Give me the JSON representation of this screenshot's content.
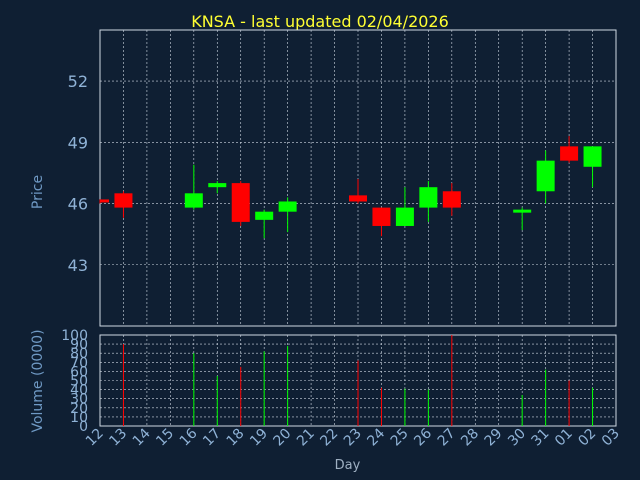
{
  "chart_data": [
    {
      "type": "candlestick",
      "title": "KNSA - last updated 02/04/2026",
      "ylabel": "Price",
      "ylim": [
        40,
        54.5
      ],
      "yticks": [
        43,
        46,
        49,
        52
      ],
      "grid": true,
      "up_color": "#00ff00",
      "down_color": "#ff0000",
      "candles": [
        {
          "day": 12,
          "open": 46.2,
          "high": 46.2,
          "low": 46.0,
          "close": 46.1
        },
        {
          "day": 13,
          "open": 46.5,
          "high": 46.6,
          "low": 45.3,
          "close": 45.8
        },
        {
          "day": 16,
          "open": 45.8,
          "high": 47.9,
          "low": 45.7,
          "close": 46.5
        },
        {
          "day": 17,
          "open": 46.8,
          "high": 47.1,
          "low": 46.5,
          "close": 47.0
        },
        {
          "day": 18,
          "open": 47.0,
          "high": 47.1,
          "low": 44.9,
          "close": 45.1
        },
        {
          "day": 19,
          "open": 45.2,
          "high": 45.7,
          "low": 44.3,
          "close": 45.6
        },
        {
          "day": 20,
          "open": 45.6,
          "high": 46.3,
          "low": 44.6,
          "close": 46.1
        },
        {
          "day": 23,
          "open": 46.4,
          "high": 47.2,
          "low": 46.0,
          "close": 46.1
        },
        {
          "day": 24,
          "open": 45.8,
          "high": 45.8,
          "low": 44.4,
          "close": 44.9
        },
        {
          "day": 25,
          "open": 44.9,
          "high": 46.8,
          "low": 44.9,
          "close": 45.8
        },
        {
          "day": 26,
          "open": 45.8,
          "high": 47.1,
          "low": 45.1,
          "close": 46.8
        },
        {
          "day": 27,
          "open": 46.6,
          "high": 47.0,
          "low": 45.4,
          "close": 45.8
        },
        {
          "day": 30,
          "open": 45.6,
          "high": 45.8,
          "low": 44.7,
          "close": 45.7
        },
        {
          "day": 31,
          "open": 46.6,
          "high": 48.6,
          "low": 46.0,
          "close": 48.1
        },
        {
          "day": "01",
          "open": 48.8,
          "high": 49.3,
          "low": 48.0,
          "close": 48.1
        },
        {
          "day": "02",
          "open": 47.8,
          "high": 48.8,
          "low": 46.8,
          "close": 48.8
        }
      ]
    },
    {
      "type": "bar",
      "xlabel": "Day",
      "ylabel": "Volume (0000)",
      "ylim": [
        0,
        100
      ],
      "yticks": [
        0,
        10,
        20,
        30,
        40,
        50,
        60,
        70,
        80,
        90,
        100
      ],
      "categories": [
        "12",
        "13",
        "14",
        "15",
        "16",
        "17",
        "18",
        "19",
        "20",
        "21",
        "22",
        "23",
        "24",
        "25",
        "26",
        "27",
        "28",
        "29",
        "30",
        "31",
        "01",
        "02",
        "03"
      ],
      "bars": [
        {
          "day": 13,
          "value": 90,
          "direction": "down"
        },
        {
          "day": 16,
          "value": 80,
          "direction": "up"
        },
        {
          "day": 17,
          "value": 55,
          "direction": "up"
        },
        {
          "day": 18,
          "value": 65,
          "direction": "down"
        },
        {
          "day": 19,
          "value": 82,
          "direction": "up"
        },
        {
          "day": 20,
          "value": 88,
          "direction": "up"
        },
        {
          "day": 23,
          "value": 72,
          "direction": "down"
        },
        {
          "day": 24,
          "value": 42,
          "direction": "down"
        },
        {
          "day": 25,
          "value": 41,
          "direction": "up"
        },
        {
          "day": 26,
          "value": 40,
          "direction": "up"
        },
        {
          "day": 27,
          "value": 100,
          "direction": "down"
        },
        {
          "day": 30,
          "value": 34,
          "direction": "up"
        },
        {
          "day": 31,
          "value": 62,
          "direction": "up"
        },
        {
          "day": "01",
          "value": 50,
          "direction": "down"
        },
        {
          "day": "02",
          "value": 42,
          "direction": "up"
        }
      ]
    }
  ]
}
